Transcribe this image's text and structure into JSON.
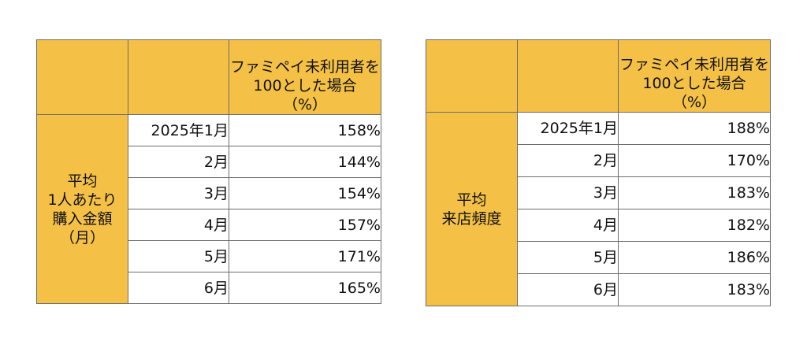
{
  "tables": [
    {
      "header": "ファミペイ未利用者を\n100とした場合\n（%）",
      "row_label": "平均\n1人あたり\n購入金額\n（月）",
      "rows": [
        {
          "month": "2025年1月",
          "value": "158%"
        },
        {
          "month": "2月",
          "value": "144%"
        },
        {
          "month": "3月",
          "value": "154%"
        },
        {
          "month": "4月",
          "value": "157%"
        },
        {
          "month": "5月",
          "value": "171%"
        },
        {
          "month": "6月",
          "value": "165%"
        }
      ]
    },
    {
      "header": "ファミペイ未利用者を\n100とした場合\n（%）",
      "row_label": "平均\n来店頻度",
      "rows": [
        {
          "month": "2025年1月",
          "value": "188%"
        },
        {
          "month": "2月",
          "value": "170%"
        },
        {
          "month": "3月",
          "value": "183%"
        },
        {
          "month": "4月",
          "value": "182%"
        },
        {
          "month": "5月",
          "value": "186%"
        },
        {
          "month": "6月",
          "value": "183%"
        }
      ]
    }
  ],
  "colors": {
    "header_fill": "#f4c146",
    "border": "#6d6d6d"
  }
}
